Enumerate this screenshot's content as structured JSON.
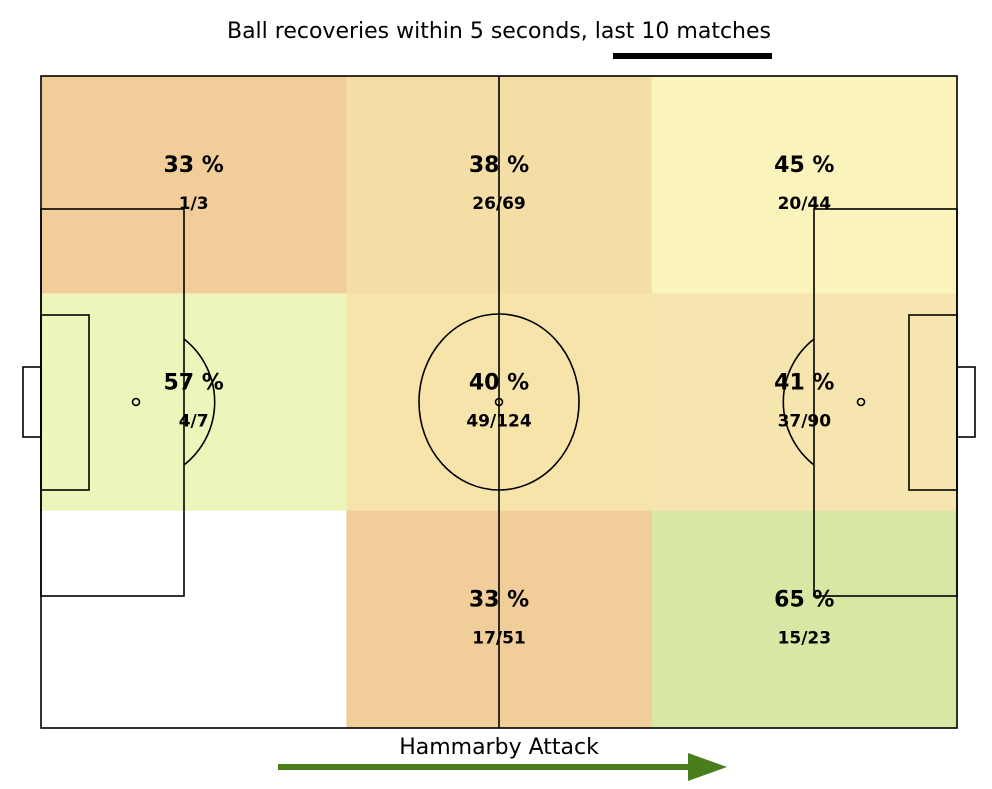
{
  "chart_data": {
    "type": "heatmap",
    "title": "Ball recoveries within 5 seconds, last 10 matches",
    "attack_label": "Hammarby Attack",
    "rows": 3,
    "cols": 3,
    "cells": [
      {
        "row": 0,
        "col": 0,
        "percent_label": "33 %",
        "fraction_label": "1/3",
        "color": "#f1cd9a"
      },
      {
        "row": 0,
        "col": 1,
        "percent_label": "38 %",
        "fraction_label": "26/69",
        "color": "#f4dea6"
      },
      {
        "row": 0,
        "col": 2,
        "percent_label": "45 %",
        "fraction_label": "20/44",
        "color": "#faf3bb"
      },
      {
        "row": 1,
        "col": 0,
        "percent_label": "57 %",
        "fraction_label": "4/7",
        "color": "#eef5bb"
      },
      {
        "row": 1,
        "col": 1,
        "percent_label": "40 %",
        "fraction_label": "49/124",
        "color": "#f6e4ab"
      },
      {
        "row": 1,
        "col": 2,
        "percent_label": "41 %",
        "fraction_label": "37/90",
        "color": "#f6e5ae"
      },
      {
        "row": 2,
        "col": 0,
        "percent_label": "",
        "fraction_label": "",
        "color": "#ffffff"
      },
      {
        "row": 2,
        "col": 1,
        "percent_label": "33 %",
        "fraction_label": "17/51",
        "color": "#f1cd9a"
      },
      {
        "row": 2,
        "col": 2,
        "percent_label": "65 %",
        "fraction_label": "15/23",
        "color": "#d8e8a4"
      }
    ],
    "arrow_color": "#4a7e1c",
    "underline_color": "#000000"
  }
}
